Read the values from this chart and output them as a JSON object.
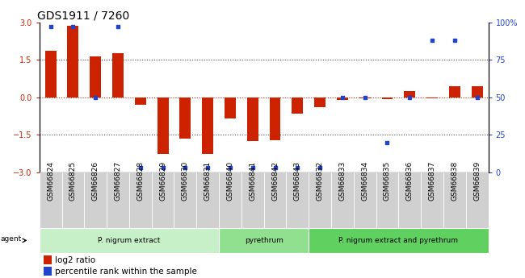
{
  "title": "GDS1911 / 7260",
  "samples": [
    "GSM66824",
    "GSM66825",
    "GSM66826",
    "GSM66827",
    "GSM66828",
    "GSM66829",
    "GSM66830",
    "GSM66831",
    "GSM66840",
    "GSM66841",
    "GSM66842",
    "GSM66843",
    "GSM66832",
    "GSM66833",
    "GSM66834",
    "GSM66835",
    "GSM66836",
    "GSM66837",
    "GSM66838",
    "GSM66839"
  ],
  "log2_ratio": [
    1.85,
    2.85,
    1.65,
    1.75,
    -0.3,
    -2.25,
    -1.65,
    -2.25,
    -0.85,
    -1.75,
    -1.7,
    -0.65,
    -0.4,
    -0.12,
    -0.05,
    -0.08,
    0.25,
    -0.05,
    0.45,
    0.45
  ],
  "percentile": [
    97,
    97,
    50,
    97,
    3,
    3,
    3,
    3,
    3,
    3,
    3,
    3,
    3,
    50,
    50,
    20,
    50,
    88,
    88,
    50
  ],
  "groups": [
    {
      "label": "P. nigrum extract",
      "start": 0,
      "end": 8,
      "color": "#c8f0c8"
    },
    {
      "label": "pyrethrum",
      "start": 8,
      "end": 12,
      "color": "#90e090"
    },
    {
      "label": "P. nigrum extract and pyrethrum",
      "start": 12,
      "end": 20,
      "color": "#60d060"
    }
  ],
  "ylim_left": [
    -3,
    3
  ],
  "ylim_right": [
    0,
    100
  ],
  "yticks_left": [
    -3,
    -1.5,
    0,
    1.5,
    3
  ],
  "yticks_right": [
    0,
    25,
    50,
    75,
    100
  ],
  "bar_color_red": "#cc2200",
  "bar_color_blue": "#2244cc",
  "dotted_line_color": "#444444",
  "zero_line_color": "#cc2200",
  "bg_color": "#ffffff",
  "title_fontsize": 10,
  "tick_fontsize": 7,
  "label_fontsize": 8,
  "legend_fontsize": 7.5
}
